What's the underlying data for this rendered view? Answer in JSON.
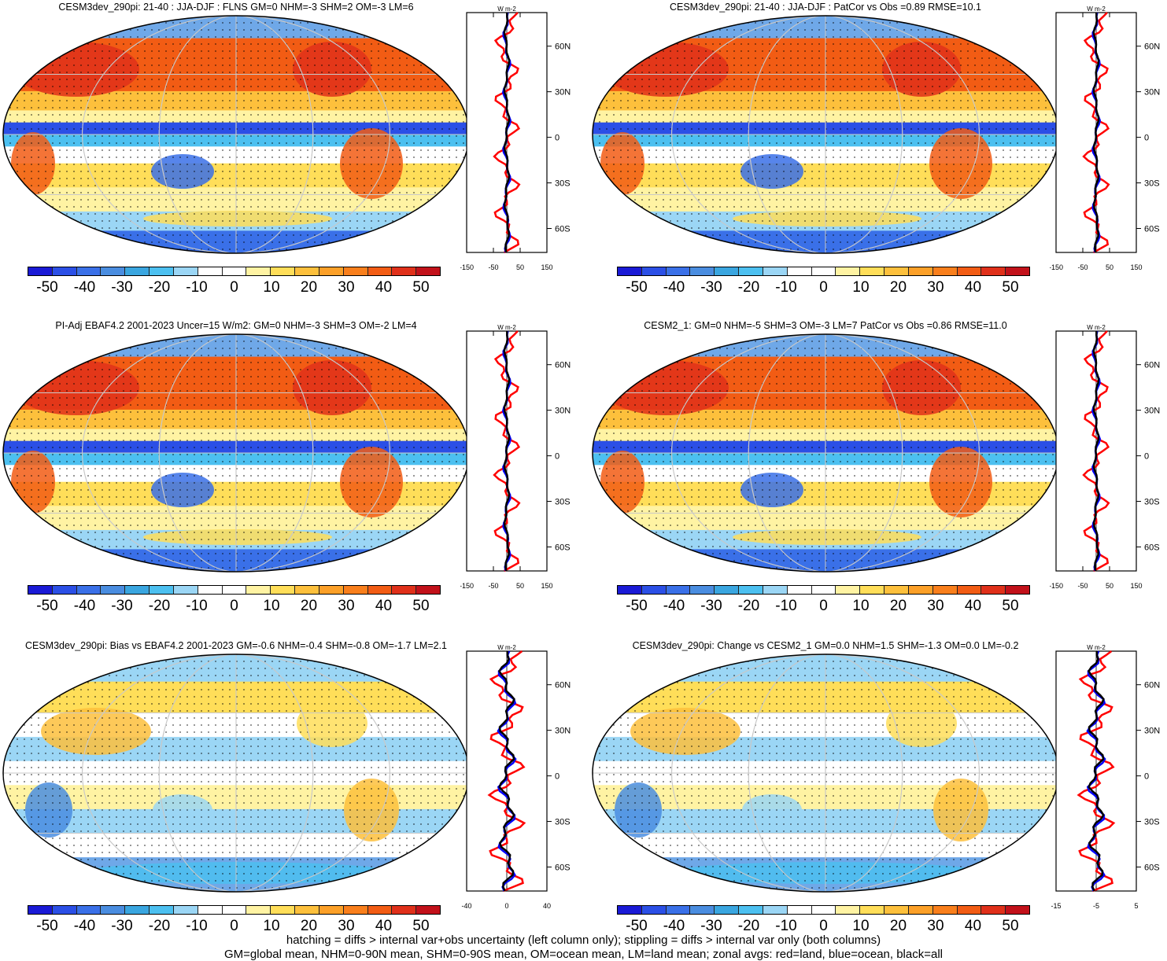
{
  "colorbar": {
    "colors": [
      "#1a1ad6",
      "#2b4fe6",
      "#3a70e8",
      "#4a8de0",
      "#3aa6e0",
      "#4cc0f0",
      "#9bd6f5",
      "#ffffff",
      "#ffffff",
      "#fff3a3",
      "#ffde59",
      "#fdc03c",
      "#fca028",
      "#f97f1c",
      "#f25c14",
      "#e0301a",
      "#c2111a"
    ],
    "labels": [
      "-50",
      "-40",
      "-30",
      "-20",
      "-10",
      "0",
      "10",
      "20",
      "30",
      "40",
      "50"
    ]
  },
  "zonal_colors": {
    "land": "#ff0000",
    "ocean": "#0000ff",
    "all": "#000000"
  },
  "panels": [
    {
      "title": "CESM3dev_290pi: 21-40 : JJA-DJF : FLNS GM=0 NHM=-3 SHM=2 OM=-3 LM=6",
      "unit": "W m-2",
      "xticks": [
        "-150",
        "-50",
        "50",
        "150"
      ],
      "lat_labels": [
        "60N",
        "30N",
        "0",
        "30S",
        "60S"
      ],
      "map_type": "field"
    },
    {
      "title": "CESM3dev_290pi: 21-40 : JJA-DJF : PatCor vs Obs =0.89 RMSE=10.1",
      "unit": "W m-2",
      "xticks": [
        "-150",
        "-50",
        "50",
        "150"
      ],
      "lat_labels": [
        "60N",
        "30N",
        "0",
        "30S",
        "60S"
      ],
      "map_type": "field"
    },
    {
      "title": "PI-Adj EBAF4.2 2001-2023 Uncer=15 W/m2: GM=0 NHM=-3 SHM=3 OM=-2 LM=4",
      "unit": "W m-2",
      "xticks": [
        "-150",
        "-50",
        "50",
        "150"
      ],
      "lat_labels": [
        "60N",
        "30N",
        "0",
        "30S",
        "60S"
      ],
      "map_type": "field"
    },
    {
      "title": "CESM2_1: GM=0 NHM=-5 SHM=3 OM=-3 LM=7 PatCor vs Obs =0.86 RMSE=11.0",
      "unit": "W m-2",
      "xticks": [
        "-150",
        "-50",
        "50",
        "150"
      ],
      "lat_labels": [
        "60N",
        "30N",
        "0",
        "30S",
        "60S"
      ],
      "map_type": "field"
    },
    {
      "title": "CESM3dev_290pi: Bias vs EBAF4.2 2001-2023 GM=-0.6 NHM=-0.4 SHM=-0.8 OM=-1.7 LM=2.1",
      "unit": "W m-2",
      "xticks": [
        "-40",
        "0",
        "40"
      ],
      "lat_labels": [
        "60N",
        "30N",
        "0",
        "30S",
        "60S"
      ],
      "map_type": "diff"
    },
    {
      "title": "CESM3dev_290pi: Change vs CESM2_1 GM=0.0 NHM=1.5 SHM=-1.3 OM=0.0 LM=-0.2",
      "unit": "W m-2",
      "xticks": [
        "-15",
        "-5",
        "5"
      ],
      "lat_labels": [
        "60N",
        "30N",
        "0",
        "30S",
        "60S"
      ],
      "map_type": "diff"
    }
  ],
  "footer": {
    "line1": "hatching = diffs > internal var+obs uncertainty (left column only); stippling = diffs > internal var only (both columns)",
    "line2": "GM=global mean, NHM=0-90N mean, SHM=0-90S mean, OM=ocean mean, LM=land mean; zonal avgs: red=land, blue=ocean, black=all"
  }
}
